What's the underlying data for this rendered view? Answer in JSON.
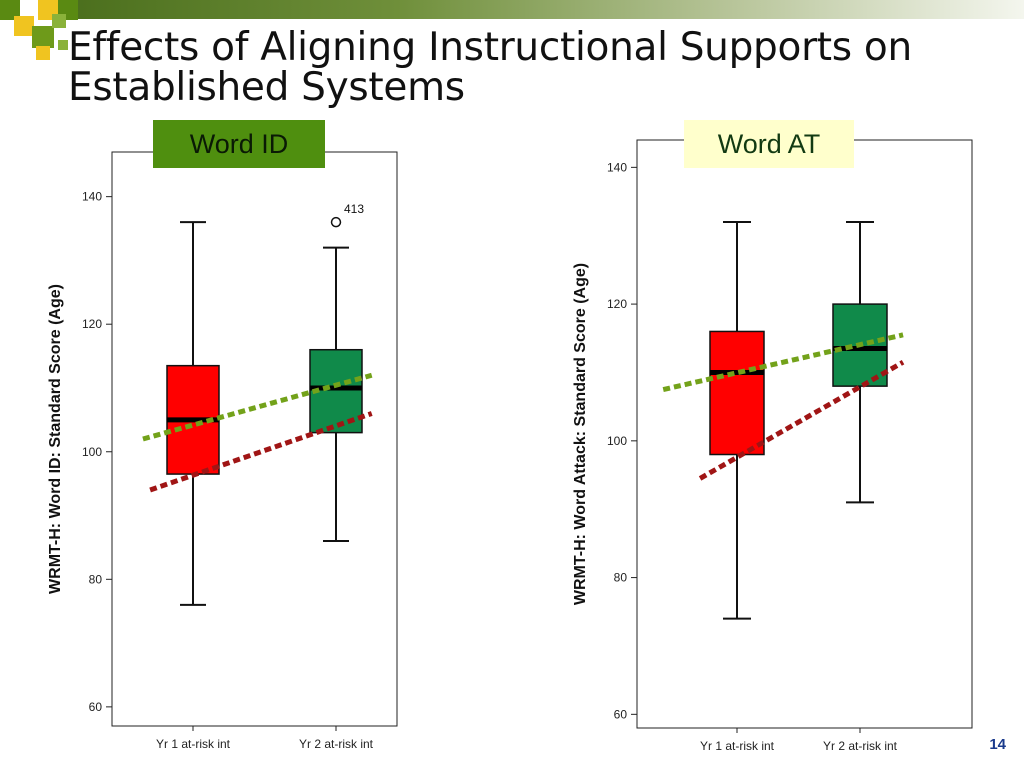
{
  "slide": {
    "title_line1": "Effects of Aligning Instructional Supports on",
    "title_line2": "Established Systems",
    "page_number": "14"
  },
  "colors": {
    "box_yr1": "#ff0000",
    "box_yr2": "#108a4a",
    "trend_green": "#73a21a",
    "trend_red": "#a01515",
    "word_id_label_bg": "#4f8f0f",
    "word_at_label_bg": "#ffffcc"
  },
  "chart_data": [
    {
      "type": "box",
      "label": "Word ID",
      "ylabel": "WRMT-H: Word ID: Standard Score (Age)",
      "ylim": [
        57,
        147
      ],
      "yticks": [
        60,
        80,
        100,
        120,
        140
      ],
      "categories": [
        "Yr 1 at-risk int",
        "Yr 2 at-risk int"
      ],
      "boxes": [
        {
          "min": 76,
          "q1": 96.5,
          "median": 105,
          "q3": 113.5,
          "max": 136,
          "outliers": []
        },
        {
          "min": 86,
          "q1": 103,
          "median": 110,
          "q3": 116,
          "max": 132,
          "outliers": [
            {
              "value": 136,
              "label": "413"
            }
          ]
        }
      ],
      "trend_lines": [
        {
          "color": "green",
          "from": [
            0.65,
            102
          ],
          "to": [
            2.25,
            112
          ]
        },
        {
          "color": "red",
          "from": [
            0.7,
            94
          ],
          "to": [
            2.25,
            106
          ]
        }
      ]
    },
    {
      "type": "box",
      "label": "Word AT",
      "ylabel": "WRMT-H: Word Attack: Standard Score (Age)",
      "ylim": [
        58,
        144
      ],
      "yticks": [
        60,
        80,
        100,
        120,
        140
      ],
      "categories": [
        "Yr 1 at-risk int",
        "Yr 2 at-risk int"
      ],
      "boxes": [
        {
          "min": 74,
          "q1": 98,
          "median": 110,
          "q3": 116,
          "max": 132,
          "outliers": []
        },
        {
          "min": 91,
          "q1": 108,
          "median": 113.5,
          "q3": 120,
          "max": 132,
          "outliers": []
        }
      ],
      "trend_lines": [
        {
          "color": "green",
          "from": [
            0.4,
            107.5
          ],
          "to": [
            2.35,
            115.5
          ]
        },
        {
          "color": "red",
          "from": [
            0.7,
            94.5
          ],
          "to": [
            2.35,
            111.5
          ]
        }
      ]
    }
  ]
}
